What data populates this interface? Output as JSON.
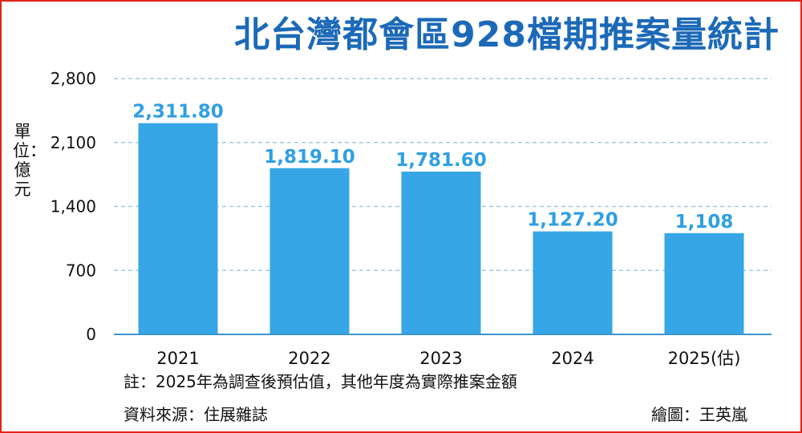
{
  "title": "北台灣都會區928檔期推案量統計",
  "unit_label": "單位：億元",
  "note": "註：2025年為調查後預估值，其他年度為實際推案金額",
  "source": "資料來源：住展雜誌",
  "credit": "繪圖：王英嵐",
  "colors": {
    "bar": "#36a6e6",
    "title": "#1c69b8",
    "data_label": "#2f9fe3",
    "gridline": "#9fcbe6",
    "axis": "#3d95cf",
    "frame": "#e2231a"
  },
  "chart_data": {
    "type": "bar",
    "title": "北台灣都會區928檔期推案量統計",
    "ylabel": "單位：億元",
    "xlabel": "",
    "categories": [
      "2021",
      "2022",
      "2023",
      "2024",
      "2025(估)"
    ],
    "values": [
      2311.8,
      1819.1,
      1781.6,
      1127.2,
      1108
    ],
    "data_labels": [
      "2,311.80",
      "1,819.10",
      "1,781.60",
      "1,127.20",
      "1,108"
    ],
    "ylim": [
      0,
      2800
    ],
    "yticks": [
      0,
      700,
      1400,
      2100,
      2800
    ],
    "ytick_labels": [
      "0",
      "700",
      "1,400",
      "2,100",
      "2,800"
    ],
    "grid": true,
    "legend": "none"
  }
}
